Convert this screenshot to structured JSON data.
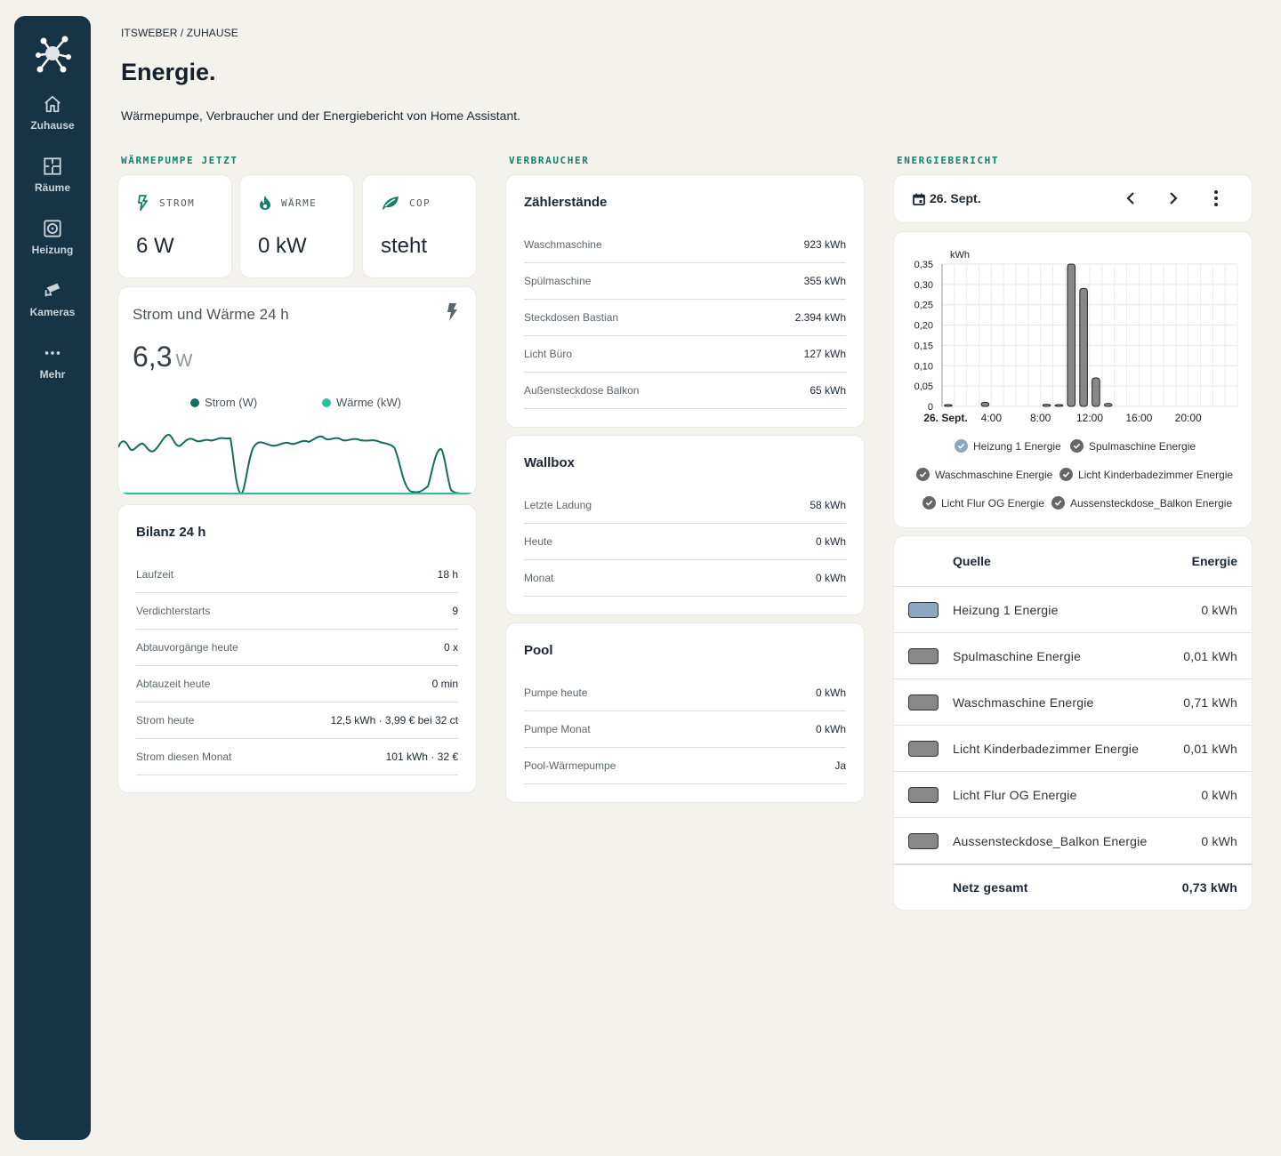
{
  "sidebar": {
    "items": [
      {
        "label": "Zuhause",
        "icon": "home-icon"
      },
      {
        "label": "Räume",
        "icon": "floorplan-icon"
      },
      {
        "label": "Heizung",
        "icon": "heat-pump-icon"
      },
      {
        "label": "Kameras",
        "icon": "cctv-icon"
      },
      {
        "label": "Mehr",
        "icon": "more-icon"
      }
    ]
  },
  "header": {
    "breadcrumb": "ITSWEBER / ZUHAUSE",
    "title": "Energie.",
    "subtitle": "Wärmepumpe, Verbraucher und der Energiebericht von Home Assistant."
  },
  "sections": {
    "heatpump": "WÄRMEPUMPE JETZT",
    "consumers": "VERBRAUCHER",
    "report": "ENERGIEBERICHT"
  },
  "tiles": [
    {
      "name": "STROM",
      "value": "6 W",
      "icon": "flash-icon"
    },
    {
      "name": "WÄRME",
      "value": "0 kW",
      "icon": "fire-icon"
    },
    {
      "name": "COP",
      "value": "steht",
      "icon": "leaf-icon"
    }
  ],
  "graph": {
    "title": "Strom und Wärme 24 h",
    "value": "6,3",
    "unit": "W",
    "legend_strom": "Strom (W)",
    "legend_waerme": "Wärme (kW)",
    "colors": {
      "strom": "#126e5e",
      "waerme": "#2bbfa0"
    }
  },
  "bilanz": {
    "title": "Bilanz 24 h",
    "rows": [
      {
        "k": "Laufzeit",
        "v": "18 h"
      },
      {
        "k": "Verdichterstarts",
        "v": "9"
      },
      {
        "k": "Abtauvorgänge heute",
        "v": "0 x"
      },
      {
        "k": "Abtauzeit heute",
        "v": "0 min"
      },
      {
        "k": "Strom heute",
        "v": "12,5 kWh · 3,99 € bei 32 ct"
      },
      {
        "k": "Strom diesen Monat",
        "v": "101 kWh · 32 €"
      }
    ]
  },
  "zaehler": {
    "title": "Zählerstände",
    "rows": [
      {
        "k": "Waschmaschine",
        "v": "923 kWh"
      },
      {
        "k": "Spülmaschine",
        "v": "355 kWh"
      },
      {
        "k": "Steckdosen Bastian",
        "v": "2.394 kWh"
      },
      {
        "k": "Licht Büro",
        "v": "127 kWh"
      },
      {
        "k": "Außensteckdose Balkon",
        "v": "65 kWh"
      }
    ]
  },
  "wallbox": {
    "title": "Wallbox",
    "rows": [
      {
        "k": "Letzte Ladung",
        "v": "58 kWh"
      },
      {
        "k": "Heute",
        "v": "0 kWh"
      },
      {
        "k": "Monat",
        "v": "0 kWh"
      }
    ]
  },
  "pool": {
    "title": "Pool",
    "rows": [
      {
        "k": "Pumpe heute",
        "v": "0 kWh"
      },
      {
        "k": "Pumpe Monat",
        "v": "0 kWh"
      },
      {
        "k": "Pool-Wärmepumpe",
        "v": "Ja"
      }
    ]
  },
  "report": {
    "date": "26. Sept."
  },
  "chart_data": {
    "type": "bar",
    "ylabel": "kWh",
    "ylim": [
      0,
      0.35
    ],
    "yticks": [
      "0,35",
      "0,30",
      "0,25",
      "0,20",
      "0,15",
      "0,10",
      "0,05",
      "0"
    ],
    "xticks": [
      "26. Sept.",
      "4:00",
      "8:00",
      "12:00",
      "16:00",
      "20:00"
    ],
    "x_hours": [
      0,
      1,
      2,
      3,
      4,
      5,
      6,
      7,
      8,
      9,
      10,
      11,
      12,
      13,
      14,
      15,
      16,
      17,
      18,
      19,
      20,
      21,
      22,
      23
    ],
    "values": [
      0.002,
      0,
      0,
      0.01,
      0,
      0,
      0,
      0,
      0.005,
      0.004,
      0.35,
      0.29,
      0.07,
      0.007,
      0,
      0,
      0,
      0,
      0,
      0,
      0,
      0,
      0,
      0
    ],
    "bar_color": "#888888",
    "legend": [
      "Heizung 1 Energie",
      "Spulmaschine Energie",
      "Waschmaschine Energie",
      "Licht Kinderbadezimmer Energie",
      "Licht Flur OG Energie",
      "Aussensteckdose_Balkon Energie"
    ]
  },
  "sources": {
    "header_source": "Quelle",
    "header_energy": "Energie",
    "rows": [
      {
        "name": "Heizung 1 Energie",
        "value": "0 kWh",
        "color": "#8aa7c4"
      },
      {
        "name": "Spulmaschine Energie",
        "value": "0,01 kWh",
        "color": "#888888"
      },
      {
        "name": "Waschmaschine Energie",
        "value": "0,71 kWh",
        "color": "#888888"
      },
      {
        "name": "Licht Kinderbadezimmer Energie",
        "value": "0,01 kWh",
        "color": "#888888"
      },
      {
        "name": "Licht Flur OG Energie",
        "value": "0 kWh",
        "color": "#888888"
      },
      {
        "name": "Aussensteckdose_Balkon Energie",
        "value": "0 kWh",
        "color": "#888888"
      }
    ],
    "total_label": "Netz gesamt",
    "total_value": "0,73 kWh"
  }
}
